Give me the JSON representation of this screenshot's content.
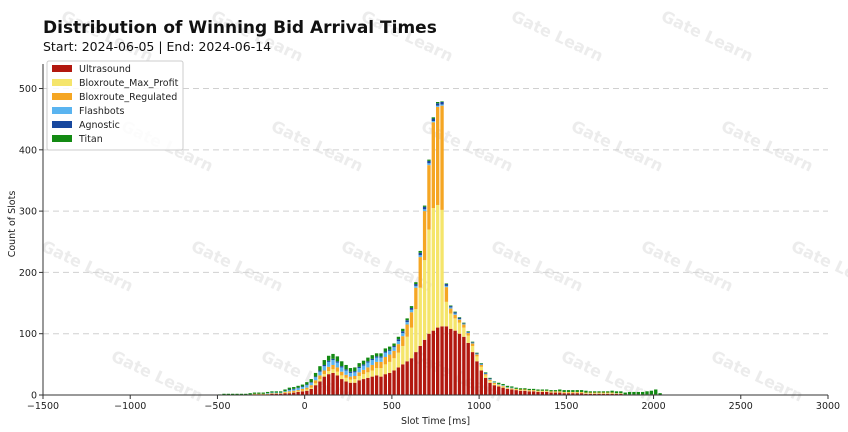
{
  "chart_data": {
    "type": "bar",
    "stacked": true,
    "title": "Distribution of Winning Bid Arrival Times",
    "subtitle": "Start: 2024-06-05 | End: 2024-06-14",
    "xlabel": "Slot Time [ms]",
    "ylabel": "Count of Slots",
    "xlim": [
      -1500,
      3000
    ],
    "ylim": [
      0,
      540
    ],
    "xticks": [
      -1500,
      -1000,
      -500,
      0,
      500,
      1000,
      1500,
      2000,
      2500,
      3000
    ],
    "xtick_labels": [
      "−1500",
      "−1000",
      "−500",
      "0",
      "500",
      "1000",
      "1500",
      "2000",
      "2500",
      "3000"
    ],
    "yticks": [
      0,
      100,
      200,
      300,
      400,
      500
    ],
    "ytick_labels": [
      "0",
      "100",
      "200",
      "300",
      "400",
      "500"
    ],
    "grid": "horizontal dashed",
    "legend_position": "top-left",
    "watermark": "Gate Learn",
    "bin_width": 25,
    "x": [
      -500,
      -475,
      -450,
      -425,
      -400,
      -375,
      -350,
      -325,
      -300,
      -275,
      -250,
      -225,
      -200,
      -175,
      -150,
      -125,
      -100,
      -75,
      -50,
      -25,
      0,
      25,
      50,
      75,
      100,
      125,
      150,
      175,
      200,
      225,
      250,
      275,
      300,
      325,
      350,
      375,
      400,
      425,
      450,
      475,
      500,
      525,
      550,
      575,
      600,
      625,
      650,
      675,
      700,
      725,
      750,
      775,
      800,
      825,
      850,
      875,
      900,
      925,
      950,
      975,
      1000,
      1025,
      1050,
      1075,
      1100,
      1125,
      1150,
      1175,
      1200,
      1225,
      1250,
      1275,
      1300,
      1325,
      1350,
      1375,
      1400,
      1425,
      1450,
      1475,
      1500,
      1525,
      1550,
      1575,
      1600,
      1625,
      1650,
      1675,
      1700,
      1725,
      1750,
      1775,
      1800,
      1825,
      1850,
      1875,
      1900,
      1925,
      1950,
      1975,
      2000,
      2025
    ],
    "series": [
      {
        "name": "Ultrasound",
        "color": "#b2180f",
        "values": [
          0,
          0,
          0,
          0,
          0,
          0,
          0,
          1,
          1,
          1,
          1,
          1,
          2,
          2,
          2,
          3,
          3,
          4,
          5,
          6,
          7,
          10,
          16,
          22,
          30,
          34,
          36,
          32,
          26,
          22,
          20,
          20,
          24,
          26,
          28,
          30,
          32,
          30,
          34,
          36,
          40,
          45,
          50,
          55,
          60,
          70,
          80,
          90,
          100,
          105,
          110,
          112,
          112,
          108,
          105,
          100,
          95,
          85,
          70,
          55,
          40,
          28,
          20,
          16,
          14,
          12,
          10,
          9,
          8,
          7,
          7,
          6,
          6,
          5,
          5,
          5,
          4,
          4,
          4,
          3,
          3,
          3,
          3,
          3,
          2,
          2,
          2,
          2,
          2,
          2,
          2,
          2,
          2,
          1,
          1,
          1,
          1,
          1,
          1,
          1,
          1,
          0
        ]
      },
      {
        "name": "Bloxroute_Max_Profit",
        "color": "#f5e56b",
        "values": [
          0,
          0,
          0,
          0,
          0,
          0,
          0,
          0,
          0,
          0,
          0,
          0,
          0,
          0,
          0,
          1,
          1,
          1,
          1,
          1,
          2,
          2,
          3,
          4,
          4,
          5,
          6,
          6,
          6,
          6,
          5,
          6,
          7,
          8,
          9,
          10,
          12,
          14,
          16,
          18,
          20,
          24,
          30,
          40,
          50,
          70,
          95,
          130,
          170,
          200,
          200,
          190,
          40,
          25,
          20,
          18,
          15,
          12,
          10,
          8,
          6,
          4,
          3,
          2,
          2,
          2,
          1,
          1,
          1,
          1,
          1,
          1,
          1,
          1,
          1,
          1,
          1,
          1,
          1,
          1,
          1,
          1,
          1,
          1,
          1,
          1,
          1,
          1,
          1,
          1,
          1,
          1,
          1,
          0,
          0,
          0,
          0,
          0,
          0,
          0,
          0,
          0
        ]
      },
      {
        "name": "Bloxroute_Regulated",
        "color": "#f5a623",
        "values": [
          0,
          0,
          0,
          0,
          0,
          0,
          0,
          0,
          1,
          1,
          1,
          1,
          1,
          1,
          1,
          1,
          2,
          2,
          2,
          3,
          3,
          4,
          5,
          6,
          6,
          7,
          7,
          7,
          6,
          5,
          5,
          5,
          6,
          7,
          8,
          9,
          10,
          10,
          12,
          12,
          12,
          14,
          16,
          20,
          25,
          35,
          50,
          80,
          105,
          140,
          160,
          170,
          24,
          8,
          6,
          5,
          5,
          4,
          4,
          3,
          3,
          2,
          2,
          2,
          1,
          1,
          1,
          1,
          1,
          1,
          1,
          1,
          1,
          1,
          1,
          1,
          1,
          1,
          1,
          1,
          1,
          1,
          1,
          1,
          1,
          1,
          1,
          1,
          1,
          1,
          1,
          0,
          0,
          0,
          0,
          0,
          0,
          0,
          0,
          0,
          0,
          0
        ]
      },
      {
        "name": "Flashbots",
        "color": "#5ab4f0",
        "values": [
          0,
          0,
          0,
          0,
          0,
          0,
          0,
          0,
          0,
          0,
          0,
          1,
          1,
          1,
          1,
          1,
          2,
          2,
          3,
          3,
          4,
          4,
          5,
          6,
          7,
          8,
          8,
          8,
          7,
          7,
          6,
          6,
          7,
          7,
          8,
          8,
          7,
          7,
          7,
          6,
          6,
          5,
          5,
          4,
          4,
          3,
          3,
          3,
          3,
          2,
          2,
          2,
          2,
          2,
          2,
          1,
          1,
          1,
          1,
          1,
          1,
          1,
          1,
          1,
          1,
          1,
          1,
          1,
          0,
          0,
          0,
          0,
          0,
          0,
          0,
          0,
          0,
          0,
          0,
          0,
          0,
          0,
          0,
          0,
          0,
          0,
          0,
          0,
          0,
          0,
          0,
          0,
          0,
          0,
          0,
          0,
          0,
          0,
          0,
          0,
          0,
          0
        ]
      },
      {
        "name": "Agnostic",
        "color": "#17479e",
        "values": [
          0,
          0,
          0,
          0,
          0,
          0,
          0,
          0,
          0,
          0,
          0,
          0,
          0,
          0,
          0,
          0,
          1,
          1,
          1,
          1,
          1,
          1,
          1,
          2,
          2,
          2,
          2,
          2,
          2,
          2,
          2,
          2,
          2,
          2,
          2,
          2,
          2,
          2,
          2,
          2,
          2,
          3,
          3,
          3,
          3,
          3,
          4,
          4,
          4,
          4,
          4,
          4,
          3,
          2,
          2,
          2,
          1,
          1,
          1,
          1,
          1,
          1,
          1,
          0,
          0,
          0,
          0,
          0,
          0,
          0,
          0,
          0,
          0,
          0,
          0,
          0,
          0,
          0,
          0,
          0,
          0,
          0,
          0,
          0,
          0,
          0,
          0,
          0,
          0,
          0,
          0,
          0,
          0,
          0,
          0,
          0,
          0,
          0,
          0,
          0,
          0,
          0
        ]
      },
      {
        "name": "Titan",
        "color": "#138a13",
        "values": [
          1,
          2,
          2,
          2,
          2,
          2,
          2,
          2,
          2,
          2,
          2,
          2,
          2,
          2,
          2,
          3,
          3,
          3,
          3,
          3,
          4,
          5,
          6,
          7,
          8,
          8,
          8,
          8,
          8,
          7,
          6,
          6,
          6,
          6,
          6,
          6,
          5,
          5,
          5,
          5,
          4,
          4,
          4,
          3,
          3,
          3,
          3,
          2,
          2,
          2,
          2,
          1,
          1,
          1,
          1,
          1,
          1,
          1,
          1,
          1,
          1,
          1,
          1,
          1,
          2,
          2,
          2,
          2,
          2,
          2,
          2,
          2,
          2,
          2,
          2,
          2,
          2,
          2,
          3,
          3,
          3,
          3,
          3,
          3,
          3,
          2,
          2,
          2,
          2,
          2,
          3,
          3,
          3,
          3,
          4,
          4,
          4,
          4,
          5,
          6,
          8,
          3
        ]
      }
    ]
  }
}
